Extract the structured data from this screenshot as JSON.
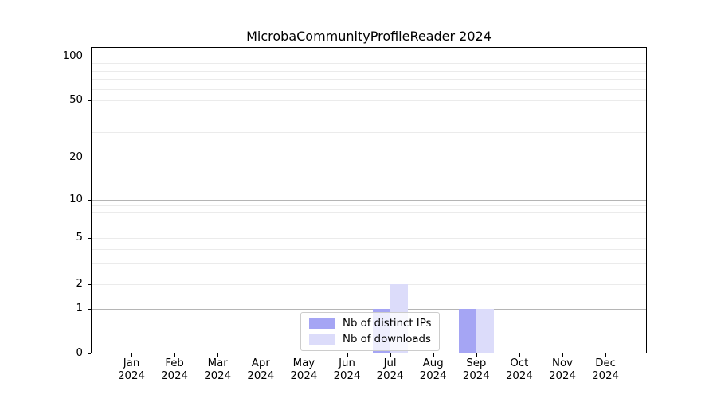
{
  "chart_data": {
    "type": "bar",
    "title": "MicrobaCommunityProfileReader 2024",
    "categories": [
      "Jan",
      "Feb",
      "Mar",
      "Apr",
      "May",
      "Jun",
      "Jul",
      "Aug",
      "Sep",
      "Oct",
      "Nov",
      "Dec"
    ],
    "x_year": "2024",
    "series": [
      {
        "name": "Nb of distinct IPs",
        "color": "#a5a5f4",
        "values": [
          0,
          0,
          0,
          0,
          0,
          0,
          1,
          0,
          1,
          0,
          0,
          0
        ]
      },
      {
        "name": "Nb of downloads",
        "color": "#dcdcfa",
        "values": [
          0,
          0,
          0,
          0,
          0,
          0,
          2,
          0,
          1,
          0,
          0,
          0
        ]
      }
    ],
    "y_ticks": [
      0,
      1,
      2,
      5,
      10,
      20,
      50,
      100
    ],
    "y_scale": "symlog",
    "grid": "horizontal major+minor log gridlines",
    "legend_position": "inside-bottom-center",
    "colors": {
      "major_grid": "#b5b5b5",
      "minor_grid": "#ebebeb",
      "axis": "#000000",
      "background": "#ffffff"
    }
  }
}
